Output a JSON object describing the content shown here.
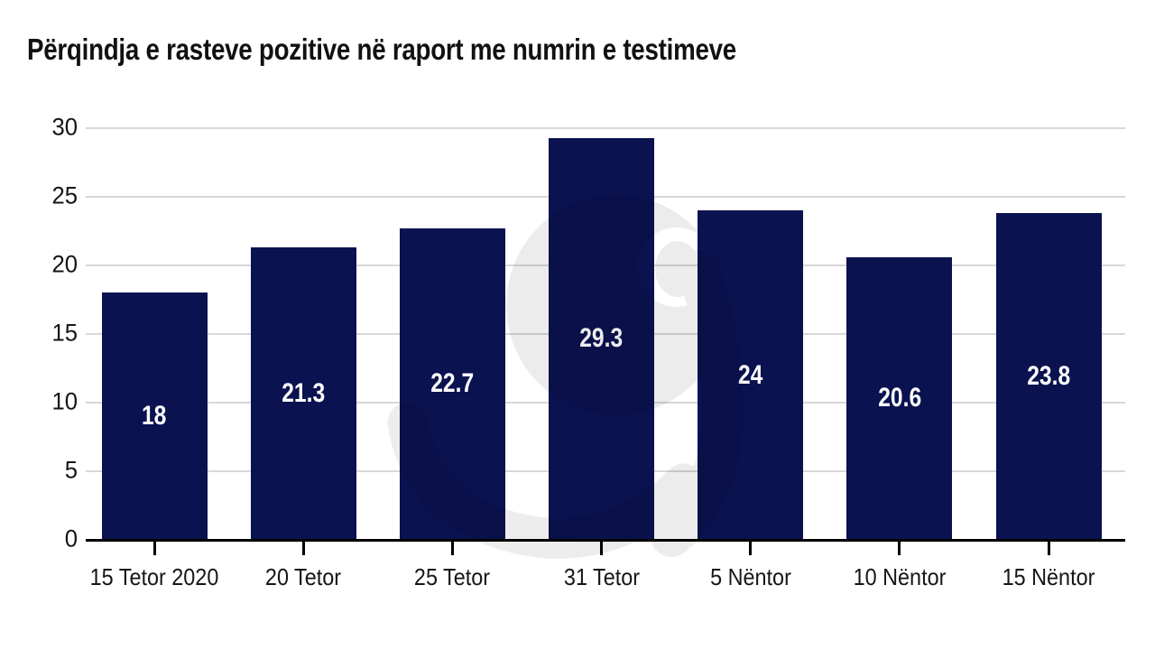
{
  "title": "Përqindja e rasteve pozitive në raport me numrin e testimeve",
  "chart_data": {
    "type": "bar",
    "title": "Përqindja e rasteve pozitive në raport me numrin e testimeve",
    "categories": [
      "15 Tetor 2020",
      "20 Tetor",
      "25 Tetor",
      "31 Tetor",
      "5 Nëntor",
      "10 Nëntor",
      "15 Nëntor"
    ],
    "values": [
      18,
      21.3,
      22.7,
      29.3,
      24,
      20.6,
      23.8
    ],
    "xlabel": "",
    "ylabel": "",
    "ylim": [
      0,
      30
    ],
    "yticks": [
      0,
      5,
      10,
      15,
      20,
      25,
      30
    ],
    "grid": "horizontal",
    "legend": "none",
    "bar_color": "#0a1250",
    "value_label_color": "#ffffff",
    "gridline_color": "#d8d8d8",
    "axis_color": "#000000",
    "text_color": "#161616",
    "watermark": "syri-eye-logo"
  }
}
